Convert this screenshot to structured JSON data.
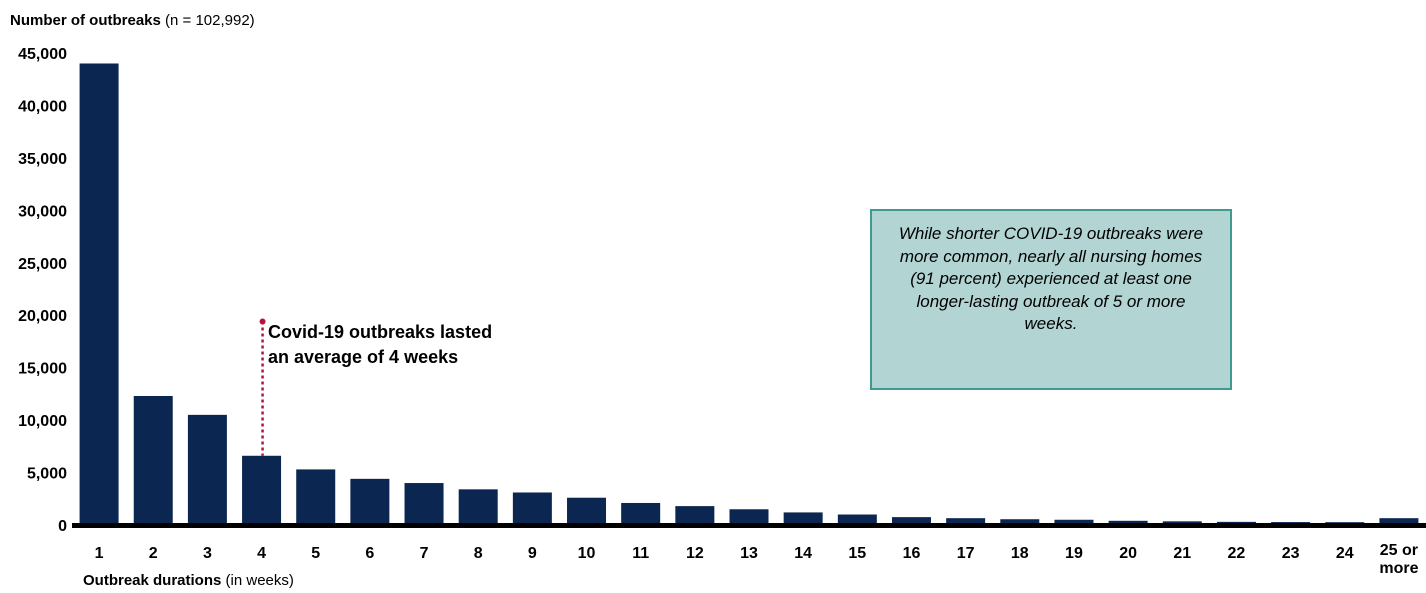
{
  "chart_data": {
    "type": "bar",
    "title": "Number of outbreaks",
    "title_note": "(n = 102,992)",
    "xlabel": "Outbreak durations",
    "xlabel_note": "(in weeks)",
    "categories": [
      "1",
      "2",
      "3",
      "4",
      "5",
      "6",
      "7",
      "8",
      "9",
      "10",
      "11",
      "12",
      "13",
      "14",
      "15",
      "16",
      "17",
      "18",
      "19",
      "20",
      "21",
      "22",
      "23",
      "24",
      "25 or more"
    ],
    "values": [
      44000,
      12300,
      10500,
      6600,
      5300,
      4400,
      4000,
      3400,
      3100,
      2600,
      2100,
      1800,
      1500,
      1200,
      1000,
      750,
      650,
      550,
      500,
      400,
      350,
      300,
      280,
      270,
      650
    ],
    "ylim": [
      0,
      45000
    ],
    "yticks": [
      0,
      5000,
      10000,
      15000,
      20000,
      25000,
      30000,
      35000,
      40000,
      45000
    ],
    "ytick_labels": [
      "0",
      "5,000",
      "10,000",
      "15,000",
      "20,000",
      "25,000",
      "30,000",
      "35,000",
      "40,000",
      "45,000"
    ],
    "grid": false,
    "bar_color": "#0b2650",
    "marker_color": "#b5143c",
    "average_marker": {
      "category": "4",
      "top_value": 19400,
      "text": "Covid-19 outbreaks lasted an average of 4 weeks"
    },
    "callout": {
      "text": "While shorter COVID-19 outbreaks were more common, nearly all nursing homes (91 percent) experienced at least one longer-lasting outbreak of 5 or more weeks.",
      "fill": "#b2d5d4",
      "border": "#3f9b8f"
    }
  }
}
